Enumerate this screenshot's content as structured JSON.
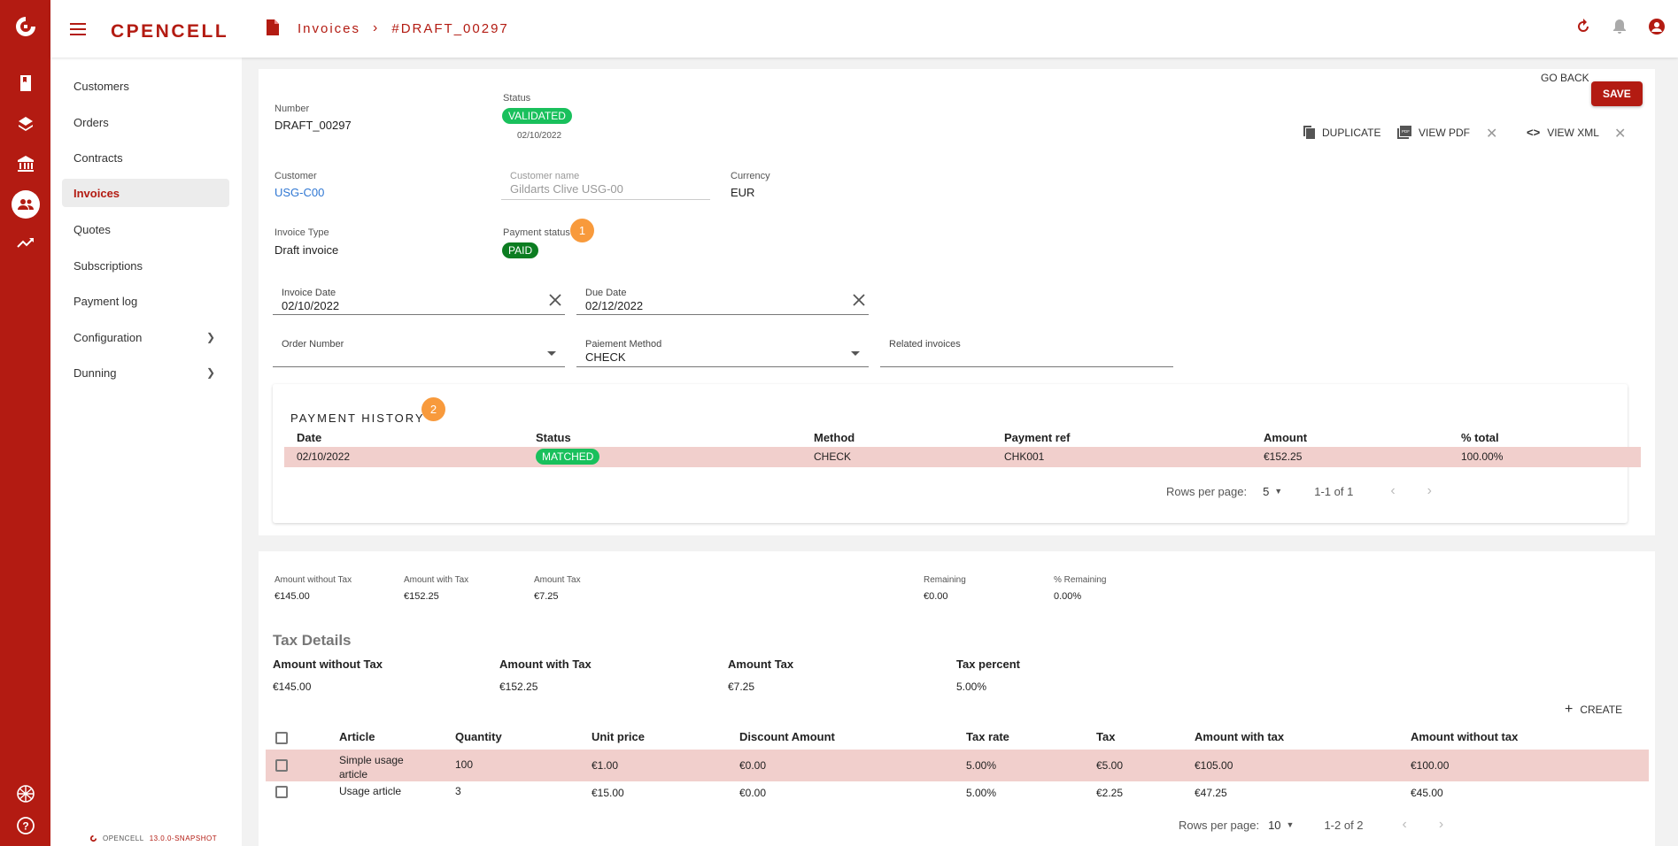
{
  "app": {
    "logo": "CPENCELL",
    "version_brand": "OPENCELL",
    "version": "13.0.0-SNAPSHOT"
  },
  "breadcrumb": {
    "section": "Invoices",
    "current": "#DRAFT_00297"
  },
  "sidebar": {
    "items": [
      {
        "label": "Customers"
      },
      {
        "label": "Orders"
      },
      {
        "label": "Contracts"
      },
      {
        "label": "Invoices"
      },
      {
        "label": "Quotes"
      },
      {
        "label": "Subscriptions"
      },
      {
        "label": "Payment log"
      },
      {
        "label": "Configuration"
      },
      {
        "label": "Dunning"
      }
    ]
  },
  "invoice": {
    "number_label": "Number",
    "number": "DRAFT_00297",
    "status_label": "Status",
    "status": "VALIDATED",
    "status_date": "02/10/2022",
    "customer_label": "Customer",
    "customer": "USG-C00",
    "customer_name_label": "Customer name",
    "customer_name": "Gildarts Clive USG-00",
    "currency_label": "Currency",
    "currency": "EUR",
    "type_label": "Invoice Type",
    "type": "Draft invoice",
    "payment_status_label": "Payment status",
    "payment_status": "PAID",
    "badge1": "1",
    "badge2": "2",
    "invoice_date_label": "Invoice Date",
    "invoice_date": "02/10/2022",
    "due_date_label": "Due Date",
    "due_date": "02/12/2022",
    "order_number_label": "Order Number",
    "order_number": "",
    "payment_method_label": "Paiement Method",
    "payment_method": "CHECK",
    "related_label": "Related invoices",
    "related": ""
  },
  "actions": {
    "go_back": "GO BACK",
    "save": "SAVE",
    "duplicate": "DUPLICATE",
    "view_pdf": "VIEW PDF",
    "view_xml": "VIEW XML"
  },
  "payment_history": {
    "title": "PAYMENT HISTORY",
    "headers": [
      "Date",
      "Status",
      "Method",
      "Payment ref",
      "Amount",
      "% total"
    ],
    "rows": [
      {
        "date": "02/10/2022",
        "status": "MATCHED",
        "method": "CHECK",
        "ref": "CHK001",
        "amount": "€152.25",
        "pct": "100.00%"
      }
    ],
    "rows_per_page_label": "Rows per page:",
    "rows_per_page": "5",
    "range": "1-1 of 1"
  },
  "amounts": {
    "without_tax_label": "Amount without Tax",
    "without_tax": "€145.00",
    "with_tax_label": "Amount with Tax",
    "with_tax": "€152.25",
    "tax_label": "Amount Tax",
    "tax": "€7.25",
    "remaining_label": "Remaining",
    "remaining": "€0.00",
    "pct_remaining_label": "% Remaining",
    "pct_remaining": "0.00%"
  },
  "tax_details": {
    "title": "Tax Details",
    "without_tax_label": "Amount without Tax",
    "without_tax": "€145.00",
    "with_tax_label": "Amount with Tax",
    "with_tax": "€152.25",
    "tax_label": "Amount Tax",
    "tax": "€7.25",
    "pct_label": "Tax percent",
    "pct": "5.00%"
  },
  "lines": {
    "create": "CREATE",
    "headers": [
      "Article",
      "Quantity",
      "Unit price",
      "Discount Amount",
      "Tax rate",
      "Tax",
      "Amount with tax",
      "Amount without tax"
    ],
    "rows": [
      {
        "article": "Simple usage article",
        "qty": "100",
        "unit": "€1.00",
        "discount": "€0.00",
        "rate": "5.00%",
        "tax": "€5.00",
        "with_tax": "€105.00",
        "without_tax": "€100.00"
      },
      {
        "article": "Usage article",
        "qty": "3",
        "unit": "€15.00",
        "discount": "€0.00",
        "rate": "5.00%",
        "tax": "€2.25",
        "with_tax": "€47.25",
        "without_tax": "€45.00"
      }
    ],
    "rows_per_page_label": "Rows per page:",
    "rows_per_page": "10",
    "range": "1-2 of 2"
  },
  "colors": {
    "brand": "#b31b12",
    "validated": "#19c05c",
    "paid": "#0c7d21",
    "badge": "#f89a3c",
    "row_highlight": "#f1cfcc"
  }
}
